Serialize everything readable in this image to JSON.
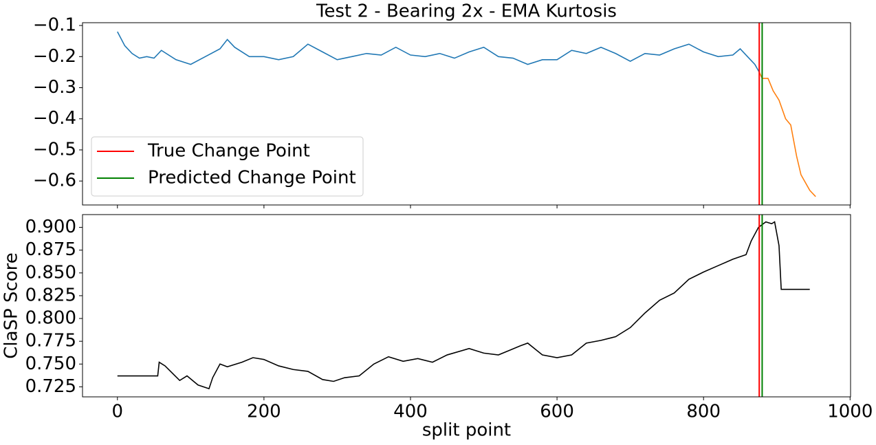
{
  "chart_data": [
    {
      "type": "line",
      "title": "Test 2 - Bearing 2x - EMA Kurtosis",
      "series": [
        {
          "color": "#1f77b4",
          "x": [
            0,
            10,
            20,
            30,
            40,
            50,
            60,
            80,
            100,
            120,
            140,
            150,
            160,
            180,
            200,
            220,
            240,
            260,
            280,
            300,
            320,
            340,
            360,
            380,
            400,
            420,
            440,
            460,
            480,
            500,
            520,
            540,
            560,
            580,
            600,
            620,
            640,
            660,
            680,
            700,
            720,
            740,
            760,
            780,
            800,
            820,
            840,
            850,
            860,
            870,
            876
          ],
          "values": [
            -0.12,
            -0.165,
            -0.19,
            -0.205,
            -0.2,
            -0.205,
            -0.18,
            -0.21,
            -0.225,
            -0.2,
            -0.175,
            -0.145,
            -0.17,
            -0.2,
            -0.2,
            -0.21,
            -0.2,
            -0.16,
            -0.185,
            -0.21,
            -0.2,
            -0.19,
            -0.195,
            -0.17,
            -0.195,
            -0.2,
            -0.19,
            -0.205,
            -0.185,
            -0.17,
            -0.2,
            -0.205,
            -0.225,
            -0.21,
            -0.21,
            -0.18,
            -0.19,
            -0.17,
            -0.19,
            -0.215,
            -0.19,
            -0.195,
            -0.175,
            -0.16,
            -0.185,
            -0.2,
            -0.195,
            -0.175,
            -0.2,
            -0.225,
            -0.25
          ]
        },
        {
          "color": "#ff7f0e",
          "x": [
            876,
            880,
            888,
            895,
            903,
            912,
            919,
            927,
            933,
            945,
            953
          ],
          "values": [
            -0.25,
            -0.27,
            -0.27,
            -0.31,
            -0.34,
            -0.4,
            -0.42,
            -0.52,
            -0.58,
            -0.63,
            -0.65
          ]
        }
      ],
      "vlines": [
        {
          "name": "True Change Point",
          "x": 876,
          "color": "red"
        },
        {
          "name": "Predicted Change Point",
          "x": 880,
          "color": "green"
        }
      ],
      "legend": "lower left",
      "xlim": [
        -47.65,
        1000.65
      ],
      "xticks": [
        0,
        200,
        400,
        600,
        800,
        1000
      ],
      "show_xtick_labels": false,
      "ylim": [
        -0.677,
        -0.091
      ],
      "yticks": [
        {
          "value": -0.6,
          "label": "−0.6"
        },
        {
          "value": -0.5,
          "label": "−0.5"
        },
        {
          "value": -0.4,
          "label": "−0.4"
        },
        {
          "value": -0.3,
          "label": "−0.3"
        },
        {
          "value": -0.2,
          "label": "−0.2"
        },
        {
          "value": -0.1,
          "label": "−0.1"
        }
      ]
    },
    {
      "type": "line",
      "x_label": "split point",
      "y_label": "ClaSP Score",
      "series": [
        {
          "color": "#000000",
          "x": [
            0,
            55,
            57,
            65,
            75,
            85,
            95,
            110,
            125,
            130,
            140,
            150,
            170,
            185,
            200,
            220,
            240,
            260,
            280,
            295,
            310,
            330,
            350,
            370,
            390,
            410,
            430,
            450,
            480,
            500,
            520,
            550,
            560,
            580,
            600,
            620,
            640,
            660,
            680,
            700,
            720,
            740,
            760,
            780,
            800,
            820,
            840,
            858,
            865,
            875,
            885,
            893,
            897,
            903,
            906,
            945
          ],
          "values": [
            0.737,
            0.737,
            0.752,
            0.748,
            0.74,
            0.732,
            0.737,
            0.727,
            0.723,
            0.735,
            0.75,
            0.747,
            0.752,
            0.757,
            0.755,
            0.748,
            0.744,
            0.742,
            0.733,
            0.731,
            0.735,
            0.737,
            0.75,
            0.758,
            0.753,
            0.756,
            0.752,
            0.76,
            0.767,
            0.762,
            0.76,
            0.77,
            0.773,
            0.76,
            0.757,
            0.76,
            0.773,
            0.776,
            0.78,
            0.79,
            0.806,
            0.82,
            0.828,
            0.843,
            0.851,
            0.858,
            0.865,
            0.87,
            0.885,
            0.9,
            0.906,
            0.904,
            0.906,
            0.88,
            0.832,
            0.832
          ]
        }
      ],
      "vlines": [
        {
          "x": 876,
          "color": "red"
        },
        {
          "x": 880,
          "color": "green"
        }
      ],
      "xlim": [
        -47.65,
        1000.65
      ],
      "xticks": [
        0,
        200,
        400,
        600,
        800,
        1000
      ],
      "show_xtick_labels": true,
      "ylim": [
        0.714,
        0.914
      ],
      "yticks": [
        0.725,
        {
          "value": 0.75,
          "label": "0.750"
        },
        0.775,
        {
          "value": 0.8,
          "label": "0.800"
        },
        0.825,
        {
          "value": 0.85,
          "label": "0.850"
        },
        0.875,
        {
          "value": 0.9,
          "label": "0.900"
        }
      ]
    }
  ]
}
